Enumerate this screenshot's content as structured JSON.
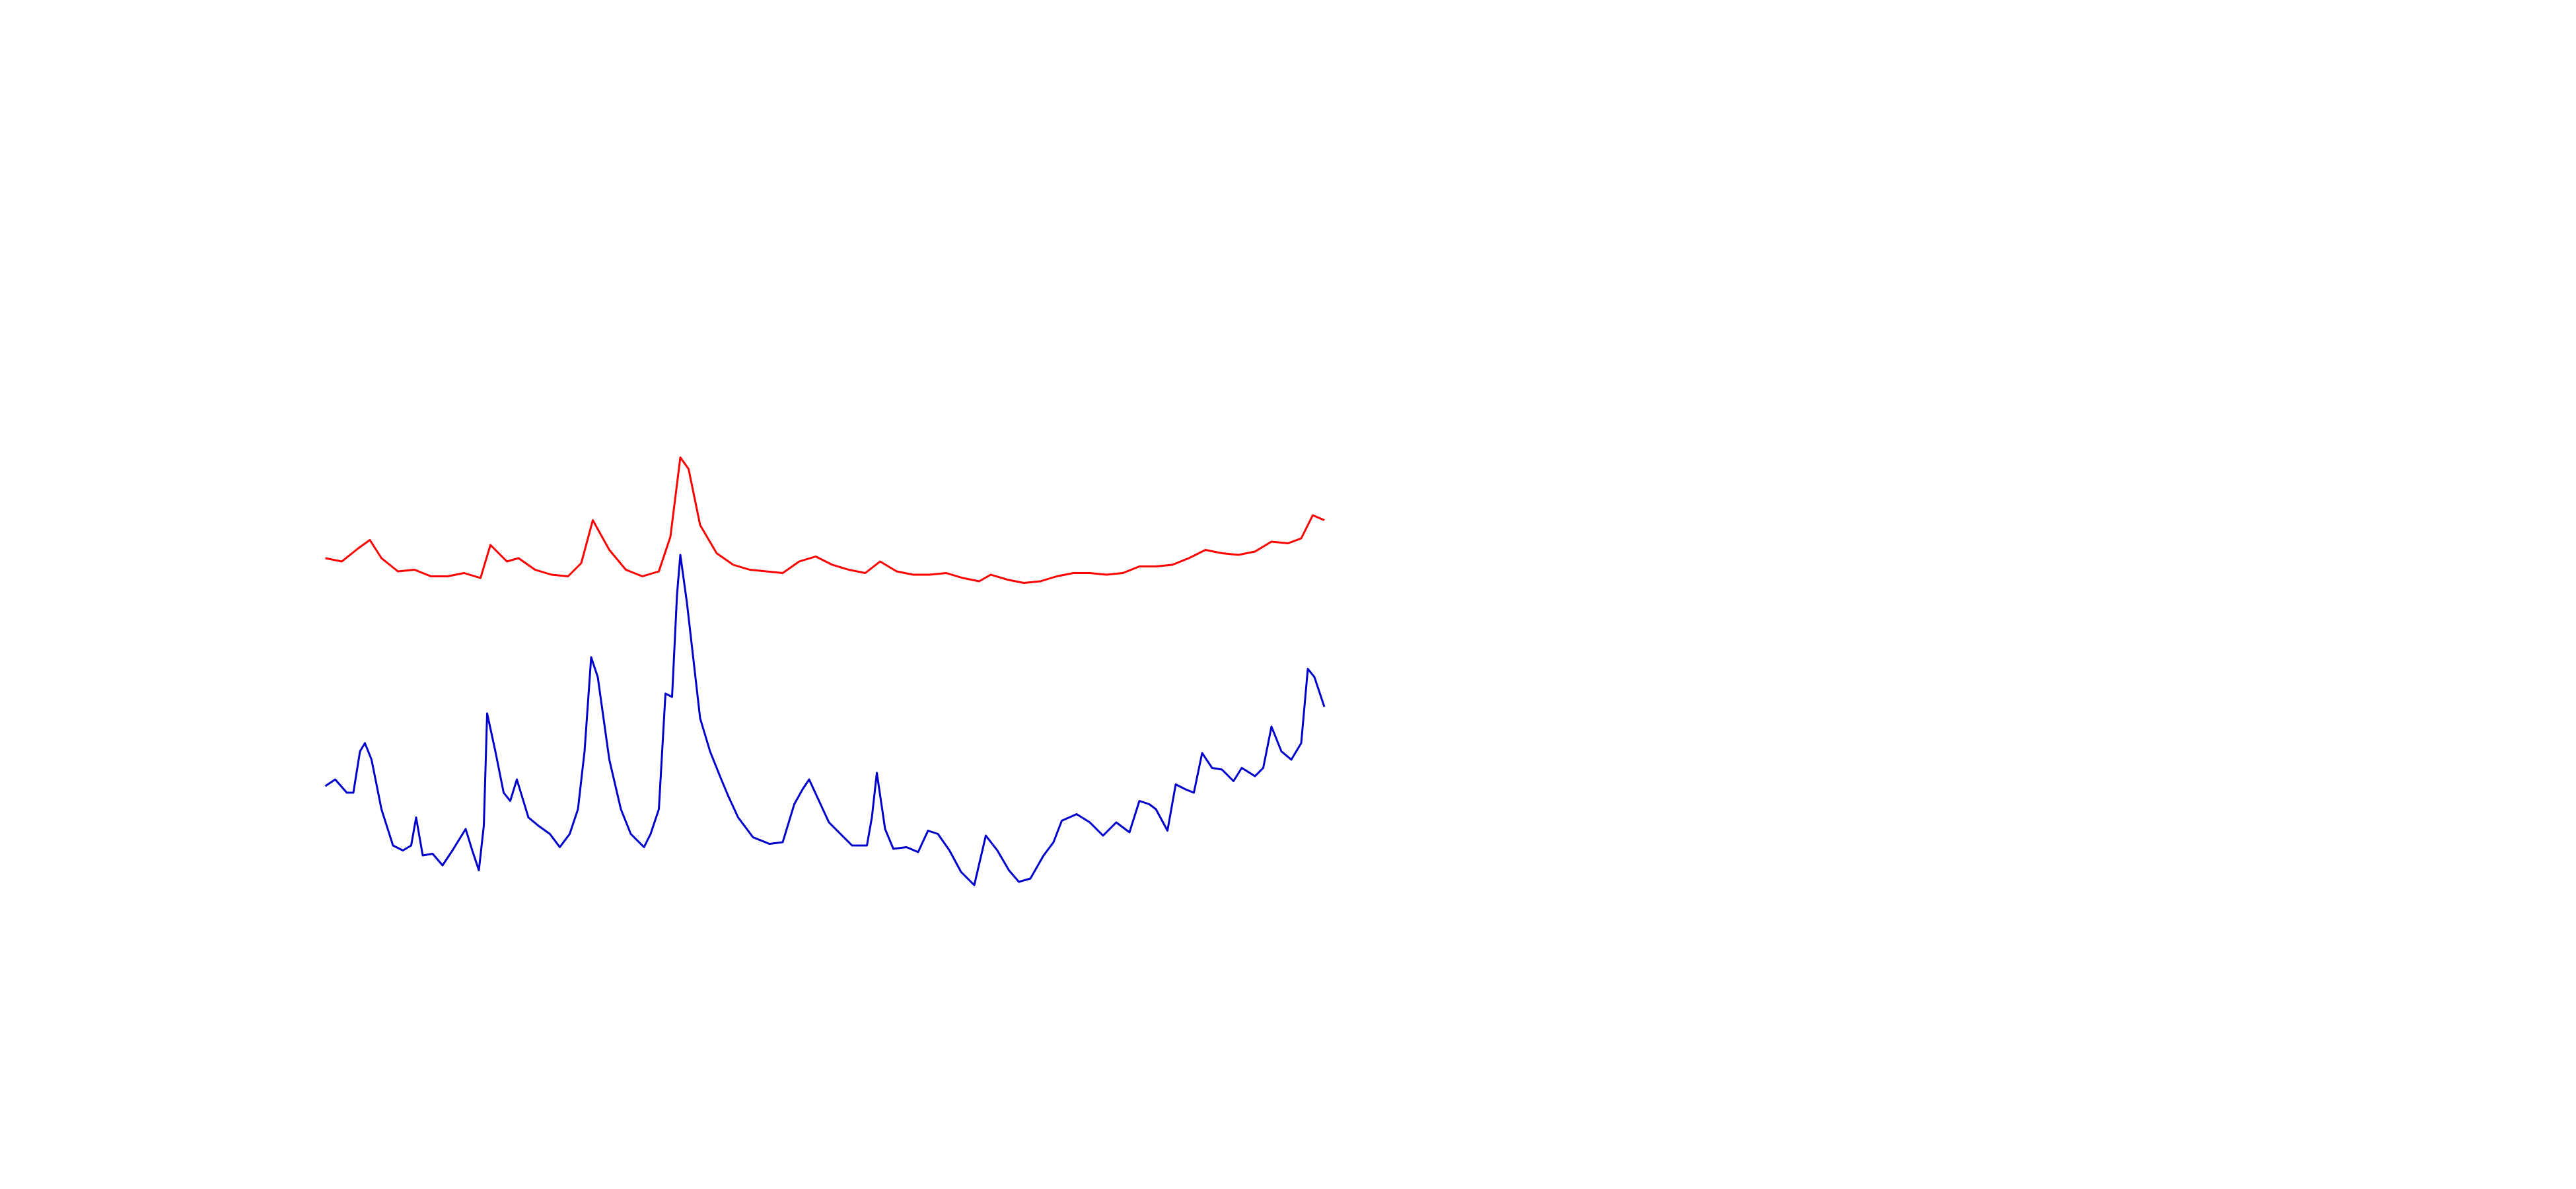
{
  "chart_data": {
    "type": "line",
    "xlim": [
      0,
      605
    ],
    "ylim": [
      0,
      720
    ],
    "series": [
      {
        "color": "#ff0000",
        "x": [
          0,
          10,
          20,
          27,
          34,
          44,
          54,
          64,
          74,
          84,
          94,
          100,
          110,
          117,
          127,
          137,
          147,
          155,
          162,
          172,
          182,
          192,
          202,
          209,
          215,
          220,
          227,
          237,
          247,
          257,
          267,
          277,
          287,
          297,
          307,
          317,
          327,
          336,
          346,
          356,
          366,
          376,
          386,
          396,
          403,
          413,
          423,
          433,
          443,
          453,
          463,
          473,
          483,
          493,
          503,
          513,
          523,
          533,
          543,
          553,
          563,
          573,
          583,
          591,
          598,
          605
        ],
        "values": [
          382,
          380,
          388,
          393,
          382,
          374,
          375,
          371,
          371,
          373,
          370,
          390,
          380,
          382,
          375,
          372,
          371,
          379,
          405,
          387,
          375,
          371,
          374,
          395,
          443,
          436,
          402,
          385,
          378,
          375,
          374,
          373,
          380,
          383,
          378,
          375,
          373,
          380,
          374,
          372,
          372,
          373,
          370,
          368,
          372,
          369,
          367,
          368,
          371,
          373,
          373,
          372,
          373,
          377,
          377,
          378,
          382,
          387,
          385,
          384,
          386,
          392,
          391,
          394,
          408,
          405
        ]
      },
      {
        "color": "#0000cc",
        "x": [
          0,
          6,
          13,
          17,
          21,
          24,
          28,
          34,
          41,
          47,
          52,
          55,
          59,
          65,
          71,
          77,
          85,
          89,
          93,
          96,
          98,
          103,
          108,
          112,
          116,
          123,
          129,
          136,
          142,
          148,
          153,
          157,
          161,
          165,
          172,
          179,
          185,
          193,
          197,
          202,
          206,
          210,
          213,
          215,
          219,
          223,
          227,
          233,
          239,
          244,
          250,
          259,
          269,
          277,
          284,
          289,
          293,
          299,
          305,
          312,
          319,
          328,
          331,
          334,
          339,
          344,
          352,
          359,
          365,
          371,
          378,
          385,
          393,
          400,
          407,
          414,
          420,
          427,
          435,
          441,
          446,
          455,
          463,
          471,
          479,
          487,
          493,
          499,
          503,
          510,
          515,
          521,
          526,
          531,
          537,
          543,
          550,
          555,
          563,
          568,
          573,
          579,
          585,
          591,
          595,
          599,
          605
        ],
        "values": [
          244,
          248,
          240,
          240,
          265,
          270,
          260,
          230,
          208,
          205,
          208,
          225,
          202,
          203,
          196,
          205,
          218,
          205,
          193,
          220,
          288,
          265,
          240,
          235,
          248,
          225,
          220,
          215,
          207,
          215,
          230,
          265,
          322,
          310,
          260,
          230,
          215,
          207,
          215,
          230,
          300,
          298,
          360,
          384,
          355,
          320,
          285,
          265,
          250,
          238,
          225,
          213,
          209,
          210,
          233,
          242,
          248,
          235,
          222,
          215,
          208,
          208,
          225,
          252,
          218,
          206,
          207,
          204,
          217,
          215,
          205,
          192,
          184,
          214,
          205,
          193,
          186,
          188,
          202,
          210,
          223,
          227,
          222,
          214,
          222,
          216,
          235,
          233,
          230,
          217,
          245,
          242,
          240,
          264,
          255,
          254,
          247,
          255,
          250,
          255,
          280,
          265,
          260,
          270,
          315,
          310,
          292
        ]
      }
    ]
  }
}
